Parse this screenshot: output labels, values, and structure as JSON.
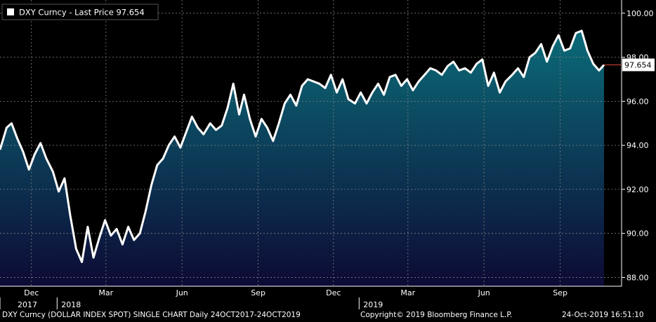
{
  "chart_data": {
    "type": "area",
    "title": "DXY Curncy - Last Price 97.654",
    "last_price_label": "97.654",
    "x_start": "2017-10-24",
    "x_end": "2019-10-24",
    "ylim": [
      87.6,
      100.6
    ],
    "y_ticks": [
      "88.00",
      "90.00",
      "92.00",
      "94.00",
      "96.00",
      "98.00",
      "100.00"
    ],
    "x_months": [
      "Dec",
      "Mar",
      "Jun",
      "Sep",
      "Dec",
      "Mar",
      "Jun",
      "Sep"
    ],
    "x_years": [
      "2017",
      "2018",
      "2019"
    ],
    "grid": true,
    "colors": {
      "line": "#ffffff",
      "fill_top": "#0b6b78",
      "fill_bottom": "#0d0a35",
      "last_price_marker": "#d9483b",
      "grid": "#808080",
      "axis_text": "#ffffff"
    },
    "x": [
      "2017-10-24",
      "2017-11-01",
      "2017-11-07",
      "2017-11-14",
      "2017-11-21",
      "2017-11-28",
      "2017-12-05",
      "2017-12-12",
      "2017-12-19",
      "2017-12-27",
      "2018-01-03",
      "2018-01-10",
      "2018-01-17",
      "2018-01-24",
      "2018-01-31",
      "2018-02-07",
      "2018-02-14",
      "2018-02-21",
      "2018-02-28",
      "2018-03-07",
      "2018-03-14",
      "2018-03-21",
      "2018-03-28",
      "2018-04-04",
      "2018-04-11",
      "2018-04-18",
      "2018-04-25",
      "2018-05-02",
      "2018-05-09",
      "2018-05-16",
      "2018-05-23",
      "2018-05-30",
      "2018-06-06",
      "2018-06-13",
      "2018-06-20",
      "2018-06-27",
      "2018-07-05",
      "2018-07-12",
      "2018-07-19",
      "2018-07-26",
      "2018-08-02",
      "2018-08-09",
      "2018-08-15",
      "2018-08-22",
      "2018-08-29",
      "2018-09-05",
      "2018-09-12",
      "2018-09-19",
      "2018-09-26",
      "2018-10-03",
      "2018-10-10",
      "2018-10-17",
      "2018-10-24",
      "2018-10-31",
      "2018-11-07",
      "2018-11-14",
      "2018-11-21",
      "2018-11-28",
      "2018-12-05",
      "2018-12-12",
      "2018-12-19",
      "2018-12-27",
      "2019-01-03",
      "2019-01-10",
      "2019-01-17",
      "2019-01-24",
      "2019-01-31",
      "2019-02-07",
      "2019-02-14",
      "2019-02-21",
      "2019-02-28",
      "2019-03-07",
      "2019-03-14",
      "2019-03-21",
      "2019-03-28",
      "2019-04-04",
      "2019-04-11",
      "2019-04-18",
      "2019-04-25",
      "2019-05-02",
      "2019-05-09",
      "2019-05-16",
      "2019-05-23",
      "2019-05-30",
      "2019-06-06",
      "2019-06-13",
      "2019-06-20",
      "2019-06-27",
      "2019-07-05",
      "2019-07-12",
      "2019-07-19",
      "2019-07-26",
      "2019-08-02",
      "2019-08-09",
      "2019-08-16",
      "2019-08-23",
      "2019-08-30",
      "2019-09-06",
      "2019-09-13",
      "2019-09-20",
      "2019-09-27",
      "2019-10-04",
      "2019-10-11",
      "2019-10-18",
      "2019-10-24"
    ],
    "values": [
      93.8,
      94.8,
      95.0,
      94.3,
      93.7,
      92.9,
      93.6,
      94.1,
      93.4,
      92.8,
      91.9,
      92.5,
      90.8,
      89.3,
      88.7,
      90.3,
      88.9,
      89.8,
      90.6,
      89.9,
      90.2,
      89.5,
      90.3,
      89.7,
      90.0,
      91.0,
      92.2,
      93.1,
      93.4,
      94.0,
      94.4,
      93.9,
      94.6,
      95.3,
      94.8,
      94.5,
      95.0,
      94.7,
      94.9,
      95.7,
      96.8,
      95.4,
      96.3,
      95.2,
      94.4,
      95.2,
      94.8,
      94.2,
      95.0,
      95.9,
      96.3,
      95.8,
      96.7,
      97.0,
      96.9,
      96.8,
      96.6,
      97.2,
      96.4,
      97.0,
      96.1,
      95.9,
      96.4,
      95.9,
      96.4,
      96.8,
      96.3,
      97.1,
      97.2,
      96.7,
      97.0,
      96.5,
      96.9,
      97.2,
      97.5,
      97.4,
      97.2,
      97.6,
      97.8,
      97.4,
      97.5,
      97.3,
      97.7,
      97.9,
      96.7,
      97.3,
      96.4,
      96.9,
      97.2,
      97.5,
      97.1,
      98.0,
      98.2,
      98.6,
      97.8,
      98.5,
      99.0,
      98.3,
      98.4,
      99.1,
      99.2,
      98.3,
      97.7,
      97.4,
      97.654
    ]
  },
  "footer": {
    "left": "DXY Curncy (DOLLAR INDEX SPOT) SINGLE CHART  Daily 24OCT2017-24OCT2019",
    "center": "Copyright© 2019 Bloomberg Finance L.P.",
    "right": "24-Oct-2019 16:51:10"
  }
}
